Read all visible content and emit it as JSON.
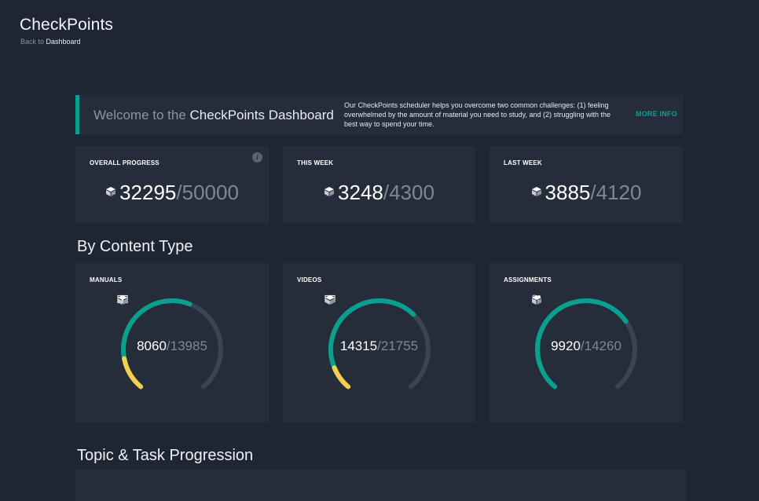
{
  "app": {
    "title": "CheckPoints",
    "breadcrumb_prefix": "Back to",
    "breadcrumb_link": "Dashboard"
  },
  "welcome": {
    "prefix": "Welcome to the",
    "strong": "CheckPoints Dashboard",
    "description": "Our CheckPoints scheduler helps you overcome two common challenges: (1) feeling overwhelmed by the amount of material you need to study, and (2) struggling with the best way to spend your time.",
    "more_info": "MORE INFO"
  },
  "stats": [
    {
      "label": "OVERALL PROGRESS",
      "value": "32295",
      "total": "/50000",
      "icon": "cube-icon",
      "has_info": true
    },
    {
      "label": "THIS WEEK",
      "value": "3248",
      "total": "/4300",
      "icon": "cube-icon"
    },
    {
      "label": "LAST WEEK",
      "value": "3885",
      "total": "/4120",
      "icon": "cube-icon"
    }
  ],
  "content_type": {
    "title": "By Content Type",
    "cards": [
      {
        "label": "MANUALS",
        "value": "8060",
        "total": "/13985",
        "icon": "book-icon",
        "completed_fraction": 0.576,
        "yellow_fraction": 0.14
      },
      {
        "label": "VIDEOS",
        "value": "14315",
        "total": "/21755",
        "icon": "monitor-icon",
        "completed_fraction": 0.658,
        "yellow_fraction": 0.1
      },
      {
        "label": "ASSIGNMENTS",
        "value": "9920",
        "total": "/14260",
        "icon": "apps-icon",
        "completed_fraction": 0.696,
        "yellow_fraction": 0
      }
    ]
  },
  "topic_section": {
    "title": "Topic & Task Progression"
  },
  "colors": {
    "background": "#1f2633",
    "card": "#252d3a",
    "accent_teal": "#0aa090",
    "accent_yellow": "#f3cf4d",
    "track": "#3b4452",
    "muted_text": "#7e8796"
  }
}
